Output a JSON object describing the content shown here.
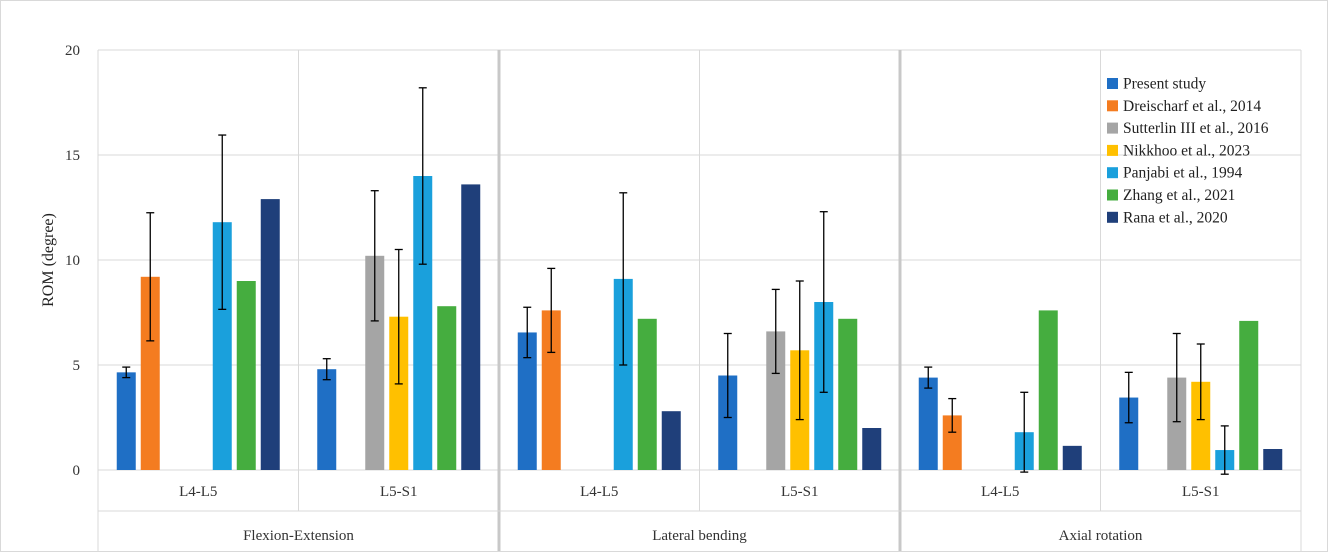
{
  "chart_data": {
    "type": "bar",
    "ylabel": "ROM (degree)",
    "ylim": [
      0,
      20
    ],
    "yticks": [
      0,
      5,
      10,
      15,
      20
    ],
    "grid": true,
    "legend_position": "top-right",
    "groups": [
      "Flexion-Extension",
      "Lateral bending",
      "Axial rotation"
    ],
    "categories": [
      "L4-L5",
      "L5-S1",
      "L4-L5",
      "L5-S1",
      "L4-L5",
      "L5-S1"
    ],
    "series": [
      {
        "name": "Present study",
        "color": "#1f6fc5",
        "values": [
          4.65,
          4.8,
          6.55,
          4.5,
          4.4,
          3.45
        ],
        "errors": [
          0.25,
          0.5,
          1.2,
          2.0,
          0.5,
          1.2
        ]
      },
      {
        "name": "Dreischarf et al., 2014",
        "color": "#f47c20",
        "values": [
          9.2,
          null,
          7.6,
          null,
          2.6,
          null
        ],
        "errors": [
          3.05,
          null,
          2.0,
          null,
          0.8,
          null
        ]
      },
      {
        "name": "Sutterlin III et al., 2016",
        "color": "#a5a5a5",
        "values": [
          null,
          10.2,
          null,
          6.6,
          null,
          4.4
        ],
        "errors": [
          null,
          3.1,
          null,
          2.0,
          null,
          2.1
        ]
      },
      {
        "name": "Nikkhoo et al., 2023",
        "color": "#ffc000",
        "values": [
          null,
          7.3,
          null,
          5.7,
          null,
          4.2
        ],
        "errors": [
          null,
          3.2,
          null,
          3.3,
          null,
          1.8
        ]
      },
      {
        "name": "Panjabi et al., 1994",
        "color": "#1aa0dc",
        "values": [
          11.8,
          14.0,
          9.1,
          8.0,
          1.8,
          0.95
        ],
        "errors": [
          4.15,
          4.2,
          4.1,
          4.3,
          1.9,
          1.15
        ]
      },
      {
        "name": "Zhang et al., 2021",
        "color": "#45ad3f",
        "values": [
          9.0,
          7.8,
          7.2,
          7.2,
          7.6,
          7.1
        ],
        "errors": [
          null,
          null,
          null,
          null,
          null,
          null
        ]
      },
      {
        "name": "Rana et al., 2020",
        "color": "#1f3f7a",
        "values": [
          12.9,
          13.6,
          2.8,
          2.0,
          1.15,
          1.0
        ],
        "errors": [
          null,
          null,
          null,
          null,
          null,
          null
        ]
      }
    ]
  }
}
